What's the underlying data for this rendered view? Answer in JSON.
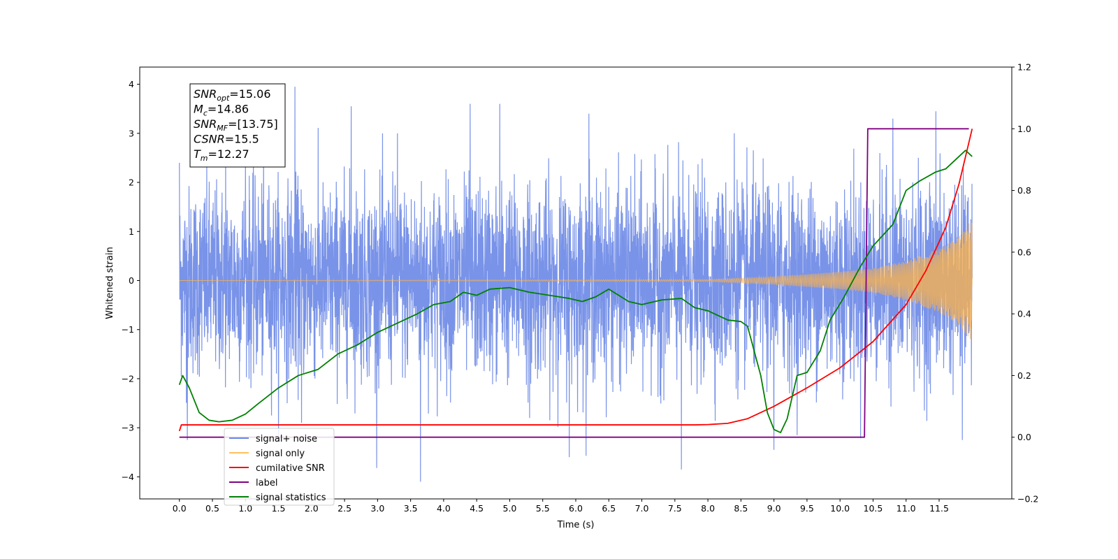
{
  "chart_data": {
    "type": "line",
    "xlabel": "Time (s)",
    "ylabel_left": "Whitened strain",
    "xlim": [
      -0.6,
      12.6
    ],
    "ylim_left": [
      -4.45,
      4.35
    ],
    "ylim_right": [
      -0.2,
      1.2
    ],
    "x_ticks": [
      0.0,
      0.5,
      1.0,
      1.5,
      2.0,
      2.5,
      3.0,
      3.5,
      4.0,
      4.5,
      5.0,
      5.5,
      6.0,
      6.5,
      7.0,
      7.5,
      8.0,
      8.5,
      9.0,
      9.5,
      10.0,
      10.5,
      11.0,
      11.5
    ],
    "x_tick_labels": [
      "0.0",
      "0.5",
      "1.0",
      "1.5",
      "2.0",
      "2.5",
      "3.0",
      "3.5",
      "4.0",
      "4.5",
      "5.0",
      "5.5",
      "6.0",
      "6.5",
      "7.0",
      "7.5",
      "8.0",
      "8.5",
      "9.0",
      "9.5",
      "10.0",
      "10.5",
      "11.0",
      "11.5"
    ],
    "y_left_ticks": [
      -4,
      -3,
      -2,
      -1,
      0,
      1,
      2,
      3,
      4
    ],
    "y_left_tick_labels": [
      "−4",
      "−3",
      "−2",
      "−1",
      "0",
      "1",
      "2",
      "3",
      "4"
    ],
    "y_right_ticks": [
      -0.2,
      0.0,
      0.2,
      0.4,
      0.6,
      0.8,
      1.0,
      1.2
    ],
    "y_right_tick_labels": [
      "−0.2",
      "0.0",
      "0.2",
      "0.4",
      "0.6",
      "0.8",
      "1.0",
      "1.2"
    ],
    "grid": false,
    "legend_position": "lower-left",
    "legend": [
      {
        "label": "signal+ noise",
        "color": "#6a87e6"
      },
      {
        "label": "signal only",
        "color": "#ffc060"
      },
      {
        "label": "cumilative SNR",
        "color": "#ff0000"
      },
      {
        "label": "label",
        "color": "#800080"
      },
      {
        "label": "signal statistics",
        "color": "#008000"
      }
    ],
    "info_box": [
      {
        "sym": "SNR",
        "sub": "opt",
        "val": "=15.06"
      },
      {
        "sym": "M",
        "sub": "c",
        "val": "=14.86"
      },
      {
        "sym": "SNR",
        "sub": "MF",
        "val": "=[13.75]"
      },
      {
        "sym": "CSNR",
        "sub": "",
        "val": "=15.5"
      },
      {
        "sym": "T",
        "sub": "m",
        "val": "=12.27"
      }
    ],
    "series": [
      {
        "name": "signal+ noise",
        "axis": "left",
        "color": "#6a87e6",
        "style": "noise",
        "x_range": [
          0.0,
          12.0
        ],
        "envelope_left": 1.0,
        "spikes": [
          {
            "x": 0.0,
            "y": 2.4
          },
          {
            "x": 0.12,
            "y": -3.25
          },
          {
            "x": 0.7,
            "y": 2.7
          },
          {
            "x": 1.0,
            "y": 2.5
          },
          {
            "x": 1.75,
            "y": 3.95
          },
          {
            "x": 1.85,
            "y": -2.9
          },
          {
            "x": 2.6,
            "y": 3.55
          },
          {
            "x": 3.65,
            "y": -4.1
          },
          {
            "x": 4.4,
            "y": 3.6
          },
          {
            "x": 4.85,
            "y": 3.6
          },
          {
            "x": 5.9,
            "y": -3.6
          },
          {
            "x": 6.2,
            "y": 3.4
          },
          {
            "x": 7.6,
            "y": -3.85
          },
          {
            "x": 9.0,
            "y": -3.45
          },
          {
            "x": 10.8,
            "y": 3.3
          },
          {
            "x": 11.45,
            "y": 3.45
          },
          {
            "x": 11.85,
            "y": -3.25
          },
          {
            "x": 3.3,
            "y": 3.0
          },
          {
            "x": 5.3,
            "y": -2.8
          },
          {
            "x": 8.4,
            "y": 3.0
          }
        ]
      },
      {
        "name": "signal only",
        "axis": "left",
        "color": "#ffb347",
        "style": "chirp",
        "x_range": [
          0.0,
          12.0
        ],
        "amplitude_points": [
          [
            0.0,
            0.0
          ],
          [
            8.0,
            0.02
          ],
          [
            9.0,
            0.08
          ],
          [
            10.0,
            0.18
          ],
          [
            10.5,
            0.25
          ],
          [
            11.0,
            0.4
          ],
          [
            11.5,
            0.65
          ],
          [
            11.8,
            0.9
          ],
          [
            12.0,
            1.25
          ]
        ]
      },
      {
        "name": "cumilative SNR",
        "axis": "right",
        "color": "#ff0000",
        "style": "line",
        "points": [
          [
            0.0,
            0.02
          ],
          [
            0.03,
            0.04
          ],
          [
            7.8,
            0.04
          ],
          [
            8.0,
            0.041
          ],
          [
            8.3,
            0.045
          ],
          [
            8.6,
            0.06
          ],
          [
            9.0,
            0.1
          ],
          [
            9.5,
            0.16
          ],
          [
            10.0,
            0.225
          ],
          [
            10.5,
            0.31
          ],
          [
            11.0,
            0.43
          ],
          [
            11.3,
            0.54
          ],
          [
            11.6,
            0.68
          ],
          [
            11.8,
            0.82
          ],
          [
            12.0,
            1.0
          ]
        ]
      },
      {
        "name": "label",
        "axis": "right",
        "color": "#800080",
        "style": "line",
        "points": [
          [
            0.0,
            0.0
          ],
          [
            10.37,
            0.0
          ],
          [
            10.42,
            1.0
          ],
          [
            11.95,
            1.0
          ]
        ]
      },
      {
        "name": "signal statistics",
        "axis": "right",
        "color": "#008000",
        "style": "line",
        "points": [
          [
            0.0,
            0.17
          ],
          [
            0.05,
            0.2
          ],
          [
            0.15,
            0.16
          ],
          [
            0.3,
            0.08
          ],
          [
            0.45,
            0.055
          ],
          [
            0.6,
            0.05
          ],
          [
            0.8,
            0.055
          ],
          [
            1.0,
            0.075
          ],
          [
            1.2,
            0.11
          ],
          [
            1.5,
            0.16
          ],
          [
            1.8,
            0.2
          ],
          [
            2.1,
            0.22
          ],
          [
            2.4,
            0.27
          ],
          [
            2.7,
            0.3
          ],
          [
            3.0,
            0.34
          ],
          [
            3.3,
            0.37
          ],
          [
            3.6,
            0.4
          ],
          [
            3.85,
            0.43
          ],
          [
            4.1,
            0.44
          ],
          [
            4.3,
            0.47
          ],
          [
            4.5,
            0.46
          ],
          [
            4.7,
            0.48
          ],
          [
            5.0,
            0.485
          ],
          [
            5.3,
            0.47
          ],
          [
            5.6,
            0.46
          ],
          [
            5.9,
            0.45
          ],
          [
            6.1,
            0.44
          ],
          [
            6.3,
            0.455
          ],
          [
            6.5,
            0.48
          ],
          [
            6.8,
            0.44
          ],
          [
            7.0,
            0.43
          ],
          [
            7.3,
            0.445
          ],
          [
            7.6,
            0.45
          ],
          [
            7.8,
            0.42
          ],
          [
            8.0,
            0.41
          ],
          [
            8.3,
            0.38
          ],
          [
            8.5,
            0.375
          ],
          [
            8.6,
            0.36
          ],
          [
            8.8,
            0.2
          ],
          [
            8.9,
            0.08
          ],
          [
            9.0,
            0.025
          ],
          [
            9.1,
            0.015
          ],
          [
            9.2,
            0.06
          ],
          [
            9.35,
            0.2
          ],
          [
            9.5,
            0.21
          ],
          [
            9.7,
            0.28
          ],
          [
            9.85,
            0.38
          ],
          [
            10.05,
            0.45
          ],
          [
            10.3,
            0.55
          ],
          [
            10.5,
            0.62
          ],
          [
            10.8,
            0.69
          ],
          [
            11.0,
            0.8
          ],
          [
            11.2,
            0.83
          ],
          [
            11.45,
            0.86
          ],
          [
            11.6,
            0.87
          ],
          [
            11.75,
            0.9
          ],
          [
            11.9,
            0.93
          ],
          [
            12.0,
            0.91
          ]
        ]
      }
    ]
  }
}
